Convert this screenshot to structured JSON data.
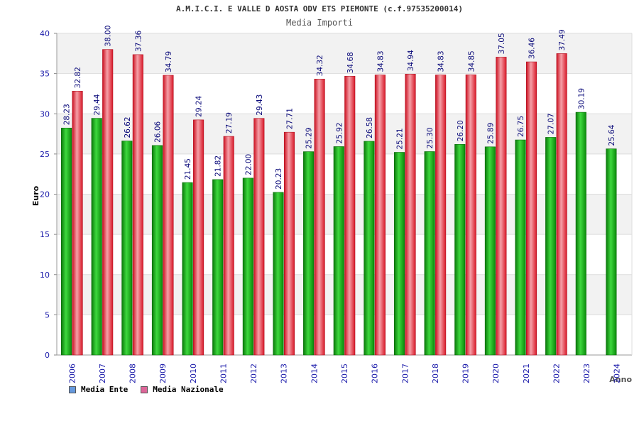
{
  "chart_data": {
    "type": "bar",
    "title": "A.M.I.C.I. E VALLE D AOSTA ODV ETS PIEMONTE (c.f.97535200014)",
    "subtitle": "Media Importi",
    "xlabel": "Anno",
    "ylabel": "Euro",
    "ylim": [
      0,
      40
    ],
    "yticks": [
      "0",
      "5",
      "10",
      "15",
      "20",
      "25",
      "30",
      "35",
      "40"
    ],
    "grid": true,
    "categories": [
      "2006",
      "2007",
      "2008",
      "2009",
      "2010",
      "2011",
      "2012",
      "2013",
      "2014",
      "2015",
      "2016",
      "2017",
      "2018",
      "2019",
      "2020",
      "2021",
      "2022",
      "2023",
      "2024"
    ],
    "series": [
      {
        "name": "Media Ente",
        "color": "#22aa22",
        "values": [
          28.23,
          29.44,
          26.62,
          26.06,
          21.45,
          21.82,
          22.0,
          20.23,
          25.29,
          25.92,
          26.58,
          25.21,
          25.3,
          26.2,
          25.89,
          26.75,
          27.07,
          30.19,
          25.64
        ],
        "labels": [
          "28.23",
          "29.44",
          "26.62",
          "26.06",
          "21.45",
          "21.82",
          "22.00",
          "20.23",
          "25.29",
          "25.92",
          "26.58",
          "25.21",
          "25.30",
          "26.20",
          "25.89",
          "26.75",
          "27.07",
          "30.19",
          "25.64"
        ]
      },
      {
        "name": "Media Nazionale",
        "color": "#ee3344",
        "values": [
          32.82,
          38.0,
          37.36,
          34.79,
          29.24,
          27.19,
          29.43,
          27.71,
          34.32,
          34.68,
          34.83,
          34.94,
          34.83,
          34.85,
          37.05,
          36.46,
          37.49,
          null,
          null
        ],
        "labels": [
          "32.82",
          "38.00",
          "37.36",
          "34.79",
          "29.24",
          "27.19",
          "29.43",
          "27.71",
          "34.32",
          "34.68",
          "34.83",
          "34.94",
          "34.83",
          "34.85",
          "37.05",
          "36.46",
          "37.49",
          null,
          null
        ]
      }
    ],
    "legend": [
      {
        "label": "Media Ente",
        "color": "#6699dd"
      },
      {
        "label": "Media Nazionale",
        "color": "#dd6699"
      }
    ],
    "legend_position": "bottom-left"
  }
}
